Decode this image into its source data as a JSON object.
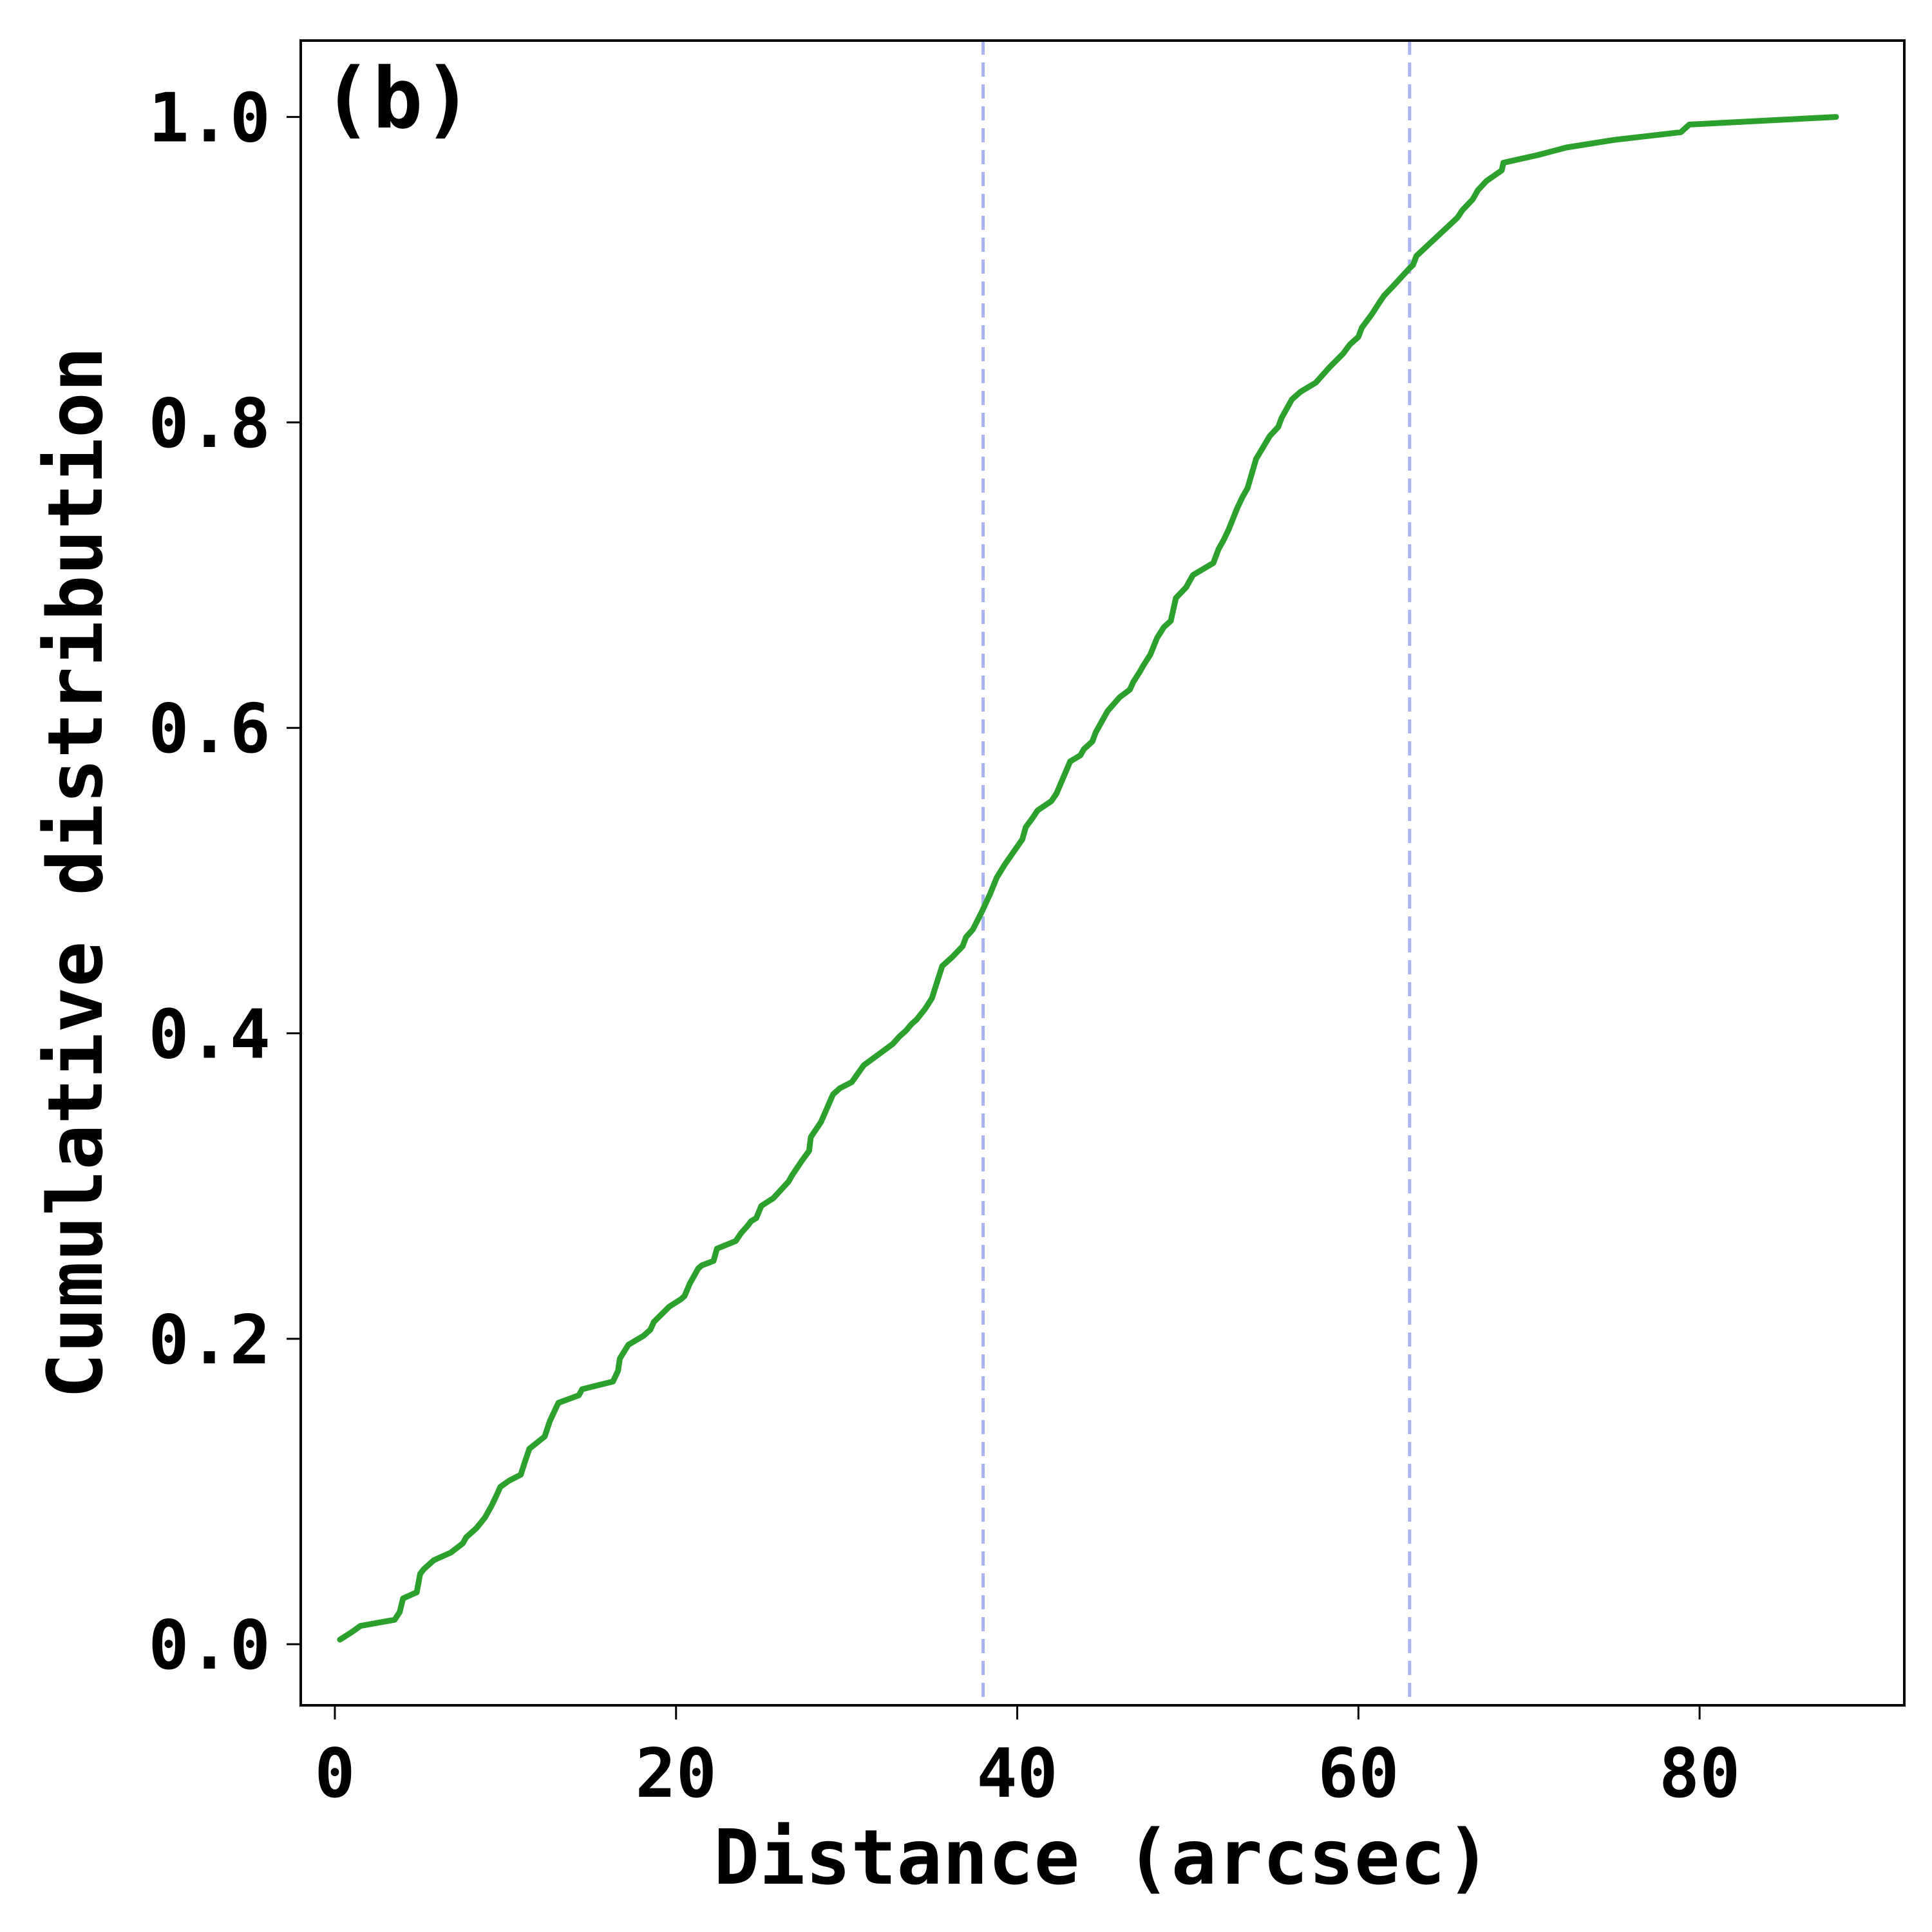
{
  "chart_data": {
    "type": "line",
    "panel_label": "(b)",
    "xlabel": "Distance (arcsec)",
    "ylabel": "Cumulative distribution",
    "xlim": [
      -2,
      92
    ],
    "ylim": [
      -0.04,
      1.05
    ],
    "xticks": [
      0,
      20,
      40,
      60,
      80
    ],
    "yticks": [
      0.0,
      0.2,
      0.4,
      0.6,
      0.8,
      1.0
    ],
    "xtick_labels": [
      "0",
      "20",
      "40",
      "60",
      "80"
    ],
    "ytick_labels": [
      "0.0",
      "0.2",
      "0.4",
      "0.6",
      "0.8",
      "1.0"
    ],
    "grid": false,
    "series": [
      {
        "color": "#2ca02c",
        "x": [
          0.3,
          1.0,
          1.5,
          3.5,
          3.8,
          4.0,
          4.8,
          5.0,
          5.2,
          5.8,
          6.8,
          7.5,
          7.7,
          8.3,
          8.8,
          9.2,
          9.5,
          9.7,
          10.2,
          10.9,
          11.1,
          11.4,
          12.3,
          12.6,
          13.1,
          14.3,
          14.5,
          16.3,
          16.6,
          16.7,
          17.2,
          18.1,
          18.5,
          18.7,
          19.6,
          20.3,
          20.5,
          20.8,
          21.3,
          21.5,
          22.2,
          22.4,
          23.5,
          23.8,
          24.2,
          24.4,
          24.7,
          25.0,
          25.7,
          26.6,
          26.8,
          27.4,
          27.8,
          27.9,
          28.5,
          29.2,
          29.6,
          30.3,
          31.0,
          32.7,
          33.1,
          33.5,
          33.8,
          34.1,
          34.6,
          35.0,
          35.2,
          35.6,
          36.2,
          36.8,
          37.0,
          37.4,
          37.9,
          38.4,
          38.8,
          39.3,
          40.3,
          40.5,
          40.9,
          41.2,
          42.0,
          42.3,
          42.8,
          43.1,
          43.7,
          43.9,
          44.4,
          44.6,
          45.3,
          46.0,
          46.6,
          46.8,
          47.2,
          47.4,
          47.8,
          48.2,
          48.6,
          49.0,
          49.3,
          49.9,
          50.3,
          51.5,
          51.8,
          52.1,
          52.4,
          52.9,
          53.2,
          53.5,
          54.0,
          54.8,
          55.3,
          55.5,
          56.1,
          56.6,
          57.5,
          57.9,
          58.3,
          59.1,
          59.5,
          60.0,
          60.2,
          60.8,
          61.2,
          61.5,
          62.1,
          63.0,
          63.2,
          63.4,
          65.8,
          66.1,
          66.7,
          67.0,
          67.5,
          68.4,
          68.5,
          70.5,
          72.2,
          75.0,
          78.9,
          79.4,
          88.0
        ],
        "values": [
          0.003,
          0.008,
          0.012,
          0.016,
          0.021,
          0.03,
          0.034,
          0.046,
          0.049,
          0.055,
          0.06,
          0.066,
          0.07,
          0.076,
          0.083,
          0.091,
          0.098,
          0.103,
          0.107,
          0.111,
          0.118,
          0.128,
          0.136,
          0.146,
          0.158,
          0.163,
          0.167,
          0.172,
          0.179,
          0.187,
          0.196,
          0.202,
          0.206,
          0.211,
          0.221,
          0.226,
          0.228,
          0.236,
          0.246,
          0.248,
          0.251,
          0.259,
          0.264,
          0.269,
          0.274,
          0.277,
          0.279,
          0.287,
          0.292,
          0.303,
          0.307,
          0.317,
          0.323,
          0.332,
          0.342,
          0.36,
          0.364,
          0.368,
          0.379,
          0.393,
          0.398,
          0.402,
          0.406,
          0.409,
          0.416,
          0.423,
          0.43,
          0.444,
          0.45,
          0.457,
          0.463,
          0.468,
          0.479,
          0.491,
          0.502,
          0.511,
          0.527,
          0.535,
          0.541,
          0.546,
          0.552,
          0.557,
          0.57,
          0.578,
          0.582,
          0.586,
          0.591,
          0.597,
          0.611,
          0.62,
          0.625,
          0.63,
          0.637,
          0.641,
          0.648,
          0.659,
          0.666,
          0.67,
          0.685,
          0.692,
          0.7,
          0.708,
          0.717,
          0.723,
          0.73,
          0.744,
          0.751,
          0.757,
          0.776,
          0.791,
          0.797,
          0.803,
          0.815,
          0.82,
          0.826,
          0.831,
          0.836,
          0.845,
          0.851,
          0.856,
          0.862,
          0.871,
          0.878,
          0.883,
          0.89,
          0.901,
          0.903,
          0.909,
          0.934,
          0.939,
          0.946,
          0.952,
          0.958,
          0.965,
          0.97,
          0.975,
          0.98,
          0.985,
          0.99,
          0.995,
          1.0
        ]
      }
    ],
    "vlines": [
      {
        "x": 38.0,
        "color": "#aab4f0",
        "style": "dashed"
      },
      {
        "x": 63.0,
        "color": "#aab4f0",
        "style": "dashed"
      }
    ]
  }
}
